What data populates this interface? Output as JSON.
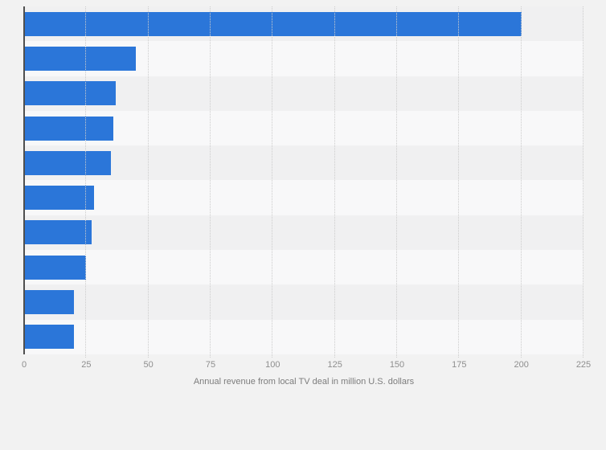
{
  "chart_data": {
    "type": "bar",
    "orientation": "horizontal",
    "title": "",
    "xlabel": "Annual revenue from local TV deal in million U.S. dollars",
    "ylabel": "",
    "values": [
      200,
      45,
      37,
      36,
      35,
      28,
      27,
      25,
      20,
      20
    ],
    "xlim": [
      0,
      225
    ],
    "xticks": [
      0,
      25,
      50,
      75,
      100,
      125,
      150,
      175,
      200,
      225
    ],
    "grid": true,
    "legend": false,
    "category_axis_labels": []
  },
  "colors": {
    "bar": "#2b76d9",
    "background": "#f2f2f2",
    "row_band_dark": "#f0f0f1",
    "row_band_light": "#f8f8f9",
    "gridline": "#cccccc",
    "axis_line": "#4f4f4f",
    "tick_text": "#8e8e8e",
    "caption_text": "#7d7d7d"
  }
}
